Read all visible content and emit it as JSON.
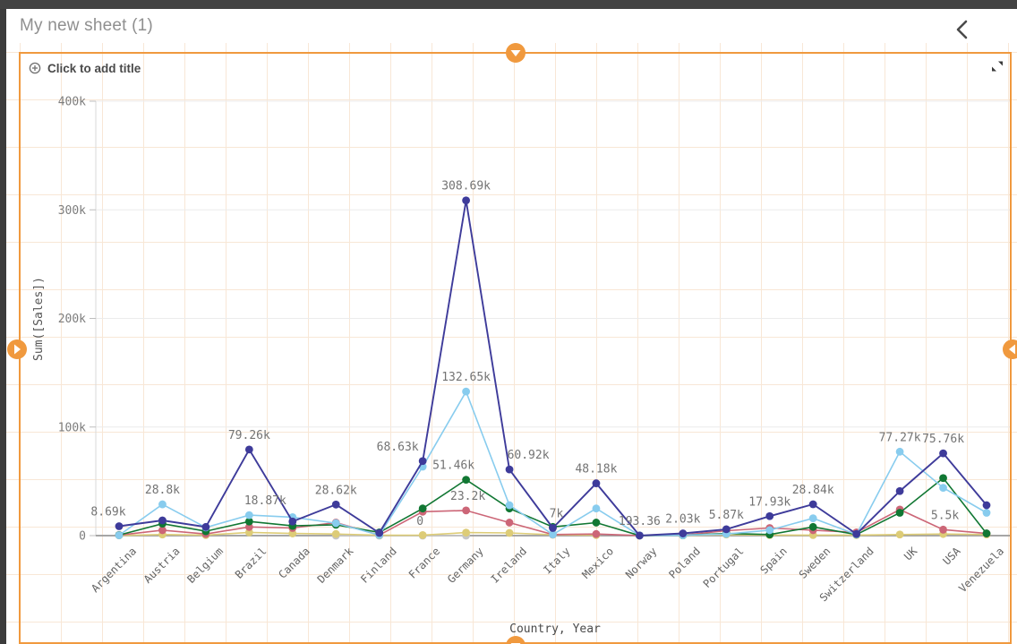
{
  "header": {
    "sheet_title": "My new sheet (1)"
  },
  "widget": {
    "add_title_placeholder": "Click to add title"
  },
  "colors": {
    "accent_orange": "#f0993e",
    "sheet_grid_line": "#f8e7d6",
    "axis_text": "#7d7d7d",
    "label_text": "#737373"
  },
  "chart_data": {
    "type": "line",
    "title": "",
    "xlabel": "Country, Year",
    "ylabel": "Sum([Sales])",
    "ylim": [
      0,
      400000
    ],
    "grid": "horizontal",
    "legend": "none",
    "yticks": [
      {
        "v": 0,
        "label": "0"
      },
      {
        "v": 100000,
        "label": "100k"
      },
      {
        "v": 200000,
        "label": "200k"
      },
      {
        "v": 300000,
        "label": "300k"
      },
      {
        "v": 400000,
        "label": "400k"
      }
    ],
    "categories": [
      "Argentina",
      "Austria",
      "Belgium",
      "Brazil",
      "Canada",
      "Denmark",
      "Finland",
      "France",
      "Germany",
      "Ireland",
      "Italy",
      "Mexico",
      "Norway",
      "Poland",
      "Portugal",
      "Spain",
      "Sweden",
      "Switzerland",
      "UK",
      "USA",
      "Venezuela"
    ],
    "series": [
      {
        "name": "gray",
        "color": "#c6c6c6",
        "values": [
          null,
          null,
          null,
          null,
          null,
          0,
          0,
          0,
          0,
          null,
          null,
          null,
          null,
          null,
          null,
          null,
          null,
          null,
          null,
          null,
          null
        ]
      },
      {
        "name": "sand",
        "color": "#ddcc77",
        "values": [
          200,
          1000,
          500,
          3000,
          2000,
          1500,
          300,
          500,
          2800,
          2500,
          800,
          500,
          null,
          200,
          1000,
          500,
          500,
          500,
          1000,
          1500,
          1000
        ]
      },
      {
        "name": "rose",
        "color": "#cc6677",
        "values": [
          500,
          5000,
          1500,
          8000,
          7000,
          12000,
          500,
          22000,
          23200,
          12000,
          1000,
          1500,
          100,
          500,
          4500,
          7000,
          5000,
          3000,
          24000,
          5500,
          2000
        ]
      },
      {
        "name": "green",
        "color": "#117733",
        "values": [
          500,
          11000,
          4000,
          13000,
          9000,
          10000,
          3000,
          25000,
          51460,
          25000,
          8000,
          12000,
          100,
          300,
          2000,
          1000,
          8000,
          1000,
          21000,
          53000,
          2000
        ]
      },
      {
        "name": "lightblue",
        "color": "#88ccee",
        "values": [
          300,
          28800,
          7500,
          18870,
          17000,
          11500,
          500,
          63500,
          132650,
          28000,
          1000,
          25000,
          193.36,
          300,
          1500,
          5000,
          16000,
          1000,
          77270,
          44000,
          21000
        ]
      },
      {
        "name": "navy",
        "color": "#3e3b9a",
        "values": [
          8690,
          14000,
          8000,
          79260,
          13000,
          28620,
          2500,
          68630,
          308690,
          60920,
          7000,
          48180,
          100,
          2030,
          5870,
          17930,
          28840,
          1500,
          41000,
          75760,
          28000
        ]
      }
    ],
    "point_labels": [
      {
        "s": "navy",
        "c": 0,
        "text": "8.69k",
        "dx": -12
      },
      {
        "s": "lightblue",
        "c": 1,
        "text": "28.8k",
        "dx": 0
      },
      {
        "s": "navy",
        "c": 3,
        "text": "79.26k",
        "dx": 0
      },
      {
        "s": "lightblue",
        "c": 3,
        "text": "18.87k",
        "dx": 18
      },
      {
        "s": "navy",
        "c": 5,
        "text": "28.62k",
        "dx": 0
      },
      {
        "s": "navy",
        "c": 7,
        "text": "68.63k",
        "dx": -28
      },
      {
        "s": "gray",
        "c": 7,
        "text": "0",
        "dx": -3
      },
      {
        "s": "navy",
        "c": 8,
        "text": "308.69k",
        "dx": 0
      },
      {
        "s": "lightblue",
        "c": 8,
        "text": "132.65k",
        "dx": 0
      },
      {
        "s": "green",
        "c": 8,
        "text": "51.46k",
        "dx": -14
      },
      {
        "s": "rose",
        "c": 8,
        "text": "23.2k",
        "dx": 2
      },
      {
        "s": "navy",
        "c": 9,
        "text": "60.92k",
        "dx": 21
      },
      {
        "s": "navy",
        "c": 10,
        "text": "7k",
        "dx": 4
      },
      {
        "s": "navy",
        "c": 11,
        "text": "48.18k",
        "dx": 0
      },
      {
        "s": "lightblue",
        "c": 12,
        "text": "193.36",
        "dx": 0
      },
      {
        "s": "navy",
        "c": 13,
        "text": "2.03k",
        "dx": 0
      },
      {
        "s": "navy",
        "c": 14,
        "text": "5.87k",
        "dx": 0
      },
      {
        "s": "navy",
        "c": 15,
        "text": "17.93k",
        "dx": 0
      },
      {
        "s": "navy",
        "c": 16,
        "text": "28.84k",
        "dx": 0
      },
      {
        "s": "lightblue",
        "c": 18,
        "text": "77.27k",
        "dx": 0
      },
      {
        "s": "navy",
        "c": 19,
        "text": "75.76k",
        "dx": 0
      },
      {
        "s": "rose",
        "c": 19,
        "text": "5.5k",
        "dx": 2
      }
    ]
  }
}
